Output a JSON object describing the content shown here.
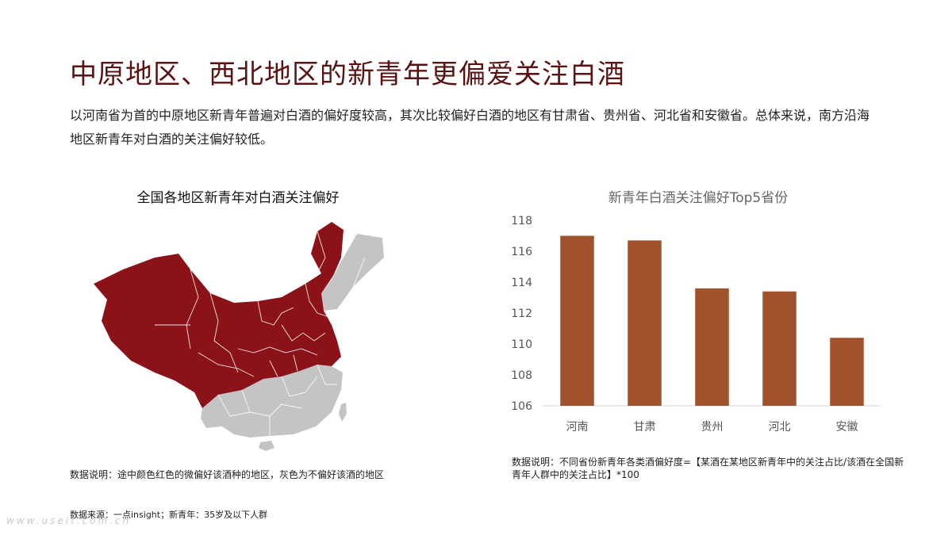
{
  "title": "中原地区、西北地区的新青年更偏爱关注白酒",
  "intro": "以河南省为首的中原地区新青年普遍对白酒的偏好度较高，其次比较偏好白酒的地区有甘肃省、贵州省、河北省和安徽省。总体来说，南方沿海地区新青年对白酒的关注偏好较低。",
  "map": {
    "title": "全国各地区新青年对白酒关注偏好",
    "note": "数据说明：途中颜色红色的微偏好该酒种的地区，灰色为不偏好该酒的地区",
    "colors": {
      "prefer": "#8b1219",
      "not_prefer": "#c4c4c4"
    }
  },
  "chart_data": {
    "type": "bar",
    "title": "新青年白酒关注偏好Top5省份",
    "categories": [
      "河南",
      "甘肃",
      "贵州",
      "河北",
      "安徽"
    ],
    "values": [
      117.0,
      116.7,
      113.6,
      113.4,
      110.4
    ],
    "ylim": [
      106,
      118
    ],
    "yticks": [
      106,
      108,
      110,
      112,
      114,
      116,
      118
    ],
    "grid": false,
    "color": "#a0522d"
  },
  "chart_note": "数据说明：不同省份新青年各类酒偏好度=【某酒在某地区新青年中的关注占比/该酒在全国新青年人群中的关注占比】*100",
  "source": "数据来源：一点insight；新青年：35岁及以下人群",
  "watermark": "www.useit.com.cn"
}
